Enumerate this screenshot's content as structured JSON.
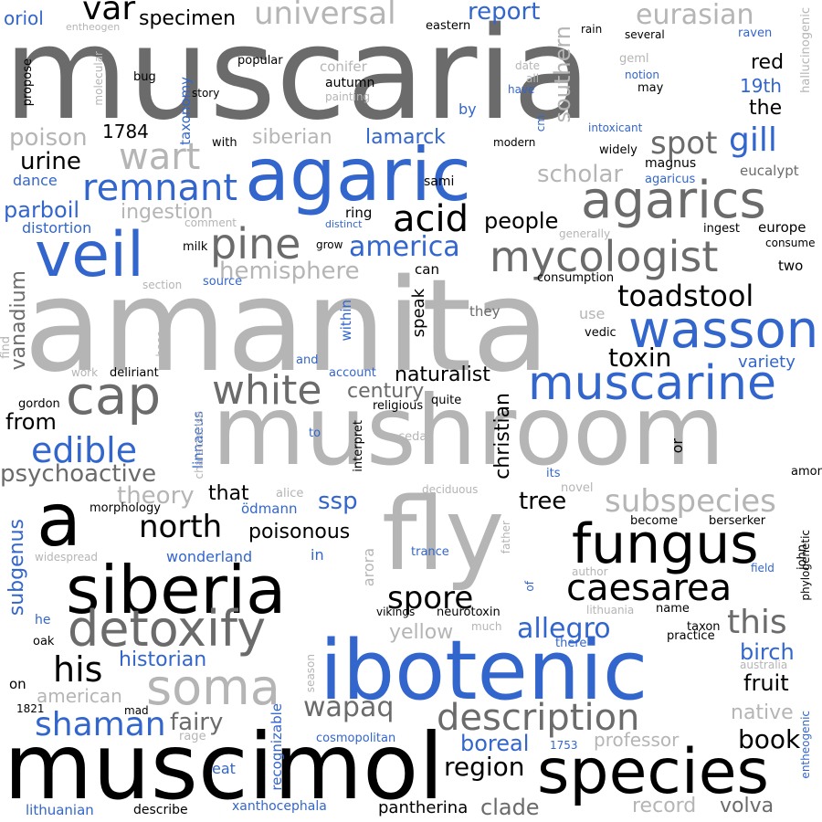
{
  "colors": {
    "black": "#000000",
    "dark_gray": "#6b6b6b",
    "light_gray": "#b5b5b5",
    "blue": "#3366cc",
    "background": "#ffffff"
  },
  "words": [
    {
      "text": "muscaria",
      "color": "dark_gray",
      "orientation": "horizontal"
    },
    {
      "text": "amanita",
      "color": "light_gray",
      "orientation": "horizontal"
    },
    {
      "text": "mushroom",
      "color": "light_gray",
      "orientation": "horizontal"
    },
    {
      "text": "muscimol",
      "color": "black",
      "orientation": "horizontal"
    },
    {
      "text": "ibotenic",
      "color": "blue",
      "orientation": "horizontal"
    },
    {
      "text": "agaric",
      "color": "blue",
      "orientation": "horizontal"
    },
    {
      "text": "fly",
      "color": "light_gray",
      "orientation": "horizontal"
    },
    {
      "text": "siberia",
      "color": "black",
      "orientation": "horizontal"
    },
    {
      "text": "species",
      "color": "black",
      "orientation": "horizontal"
    },
    {
      "text": "a",
      "color": "black",
      "orientation": "horizontal"
    },
    {
      "text": "veil",
      "color": "blue",
      "orientation": "horizontal"
    },
    {
      "text": "fungus",
      "color": "black",
      "orientation": "horizontal"
    },
    {
      "text": "detoxify",
      "color": "dark_gray",
      "orientation": "horizontal"
    },
    {
      "text": "agarics",
      "color": "dark_gray",
      "orientation": "horizontal"
    },
    {
      "text": "cap",
      "color": "dark_gray",
      "orientation": "horizontal"
    },
    {
      "text": "wasson",
      "color": "blue",
      "orientation": "horizontal"
    },
    {
      "text": "muscarine",
      "color": "blue",
      "orientation": "horizontal"
    },
    {
      "text": "mycologist",
      "color": "dark_gray",
      "orientation": "horizontal"
    },
    {
      "text": "description",
      "color": "dark_gray",
      "orientation": "horizontal"
    },
    {
      "text": "soma",
      "color": "light_gray",
      "orientation": "horizontal"
    },
    {
      "text": "white",
      "color": "dark_gray",
      "orientation": "horizontal"
    },
    {
      "text": "caesarea",
      "color": "black",
      "orientation": "horizontal"
    },
    {
      "text": "subspecies",
      "color": "light_gray",
      "orientation": "horizontal"
    },
    {
      "text": "pine",
      "color": "dark_gray",
      "orientation": "horizontal"
    },
    {
      "text": "remnant",
      "color": "blue",
      "orientation": "horizontal"
    },
    {
      "text": "universal",
      "color": "light_gray",
      "orientation": "horizontal"
    },
    {
      "text": "eurasian",
      "color": "light_gray",
      "orientation": "horizontal"
    },
    {
      "text": "toadstool",
      "color": "black",
      "orientation": "horizontal"
    },
    {
      "text": "edible",
      "color": "blue",
      "orientation": "horizontal"
    },
    {
      "text": "wart",
      "color": "light_gray",
      "orientation": "horizontal"
    },
    {
      "text": "acid",
      "color": "black",
      "orientation": "horizontal"
    },
    {
      "text": "north",
      "color": "black",
      "orientation": "horizontal"
    },
    {
      "text": "spore",
      "color": "black",
      "orientation": "horizontal"
    },
    {
      "text": "allegro",
      "color": "blue",
      "orientation": "horizontal"
    },
    {
      "text": "this",
      "color": "dark_gray",
      "orientation": "horizontal"
    },
    {
      "text": "his",
      "color": "black",
      "orientation": "horizontal"
    },
    {
      "text": "shaman",
      "color": "blue",
      "orientation": "horizontal"
    },
    {
      "text": "book",
      "color": "black",
      "orientation": "horizontal"
    },
    {
      "text": "region",
      "color": "black",
      "orientation": "horizontal"
    },
    {
      "text": "wapaq",
      "color": "dark_gray",
      "orientation": "horizontal"
    },
    {
      "text": "gill",
      "color": "blue",
      "orientation": "horizontal"
    },
    {
      "text": "spot",
      "color": "dark_gray",
      "orientation": "horizontal"
    },
    {
      "text": "var",
      "color": "black",
      "orientation": "horizontal"
    },
    {
      "text": "hemisphere",
      "color": "light_gray",
      "orientation": "horizontal"
    },
    {
      "text": "america",
      "color": "blue",
      "orientation": "horizontal"
    },
    {
      "text": "people",
      "color": "black",
      "orientation": "horizontal"
    },
    {
      "text": "toxin",
      "color": "black",
      "orientation": "horizontal"
    },
    {
      "text": "naturalist",
      "color": "black",
      "orientation": "horizontal"
    },
    {
      "text": "century",
      "color": "dark_gray",
      "orientation": "horizontal"
    },
    {
      "text": "psychoactive",
      "color": "dark_gray",
      "orientation": "horizontal"
    },
    {
      "text": "theory",
      "color": "light_gray",
      "orientation": "horizontal"
    },
    {
      "text": "poisonous",
      "color": "black",
      "orientation": "horizontal"
    },
    {
      "text": "tree",
      "color": "black",
      "orientation": "horizontal"
    },
    {
      "text": "ssp",
      "color": "blue",
      "orientation": "horizontal"
    },
    {
      "text": "that",
      "color": "black",
      "orientation": "horizontal"
    },
    {
      "text": "fairy",
      "color": "dark_gray",
      "orientation": "horizontal"
    },
    {
      "text": "fruit",
      "color": "black",
      "orientation": "horizontal"
    },
    {
      "text": "birch",
      "color": "blue",
      "orientation": "horizontal"
    },
    {
      "text": "boreal",
      "color": "blue",
      "orientation": "horizontal"
    },
    {
      "text": "clade",
      "color": "dark_gray",
      "orientation": "horizontal"
    },
    {
      "text": "volva",
      "color": "dark_gray",
      "orientation": "horizontal"
    },
    {
      "text": "record",
      "color": "light_gray",
      "orientation": "horizontal"
    },
    {
      "text": "pantherina",
      "color": "black",
      "orientation": "horizontal"
    },
    {
      "text": "yellow",
      "color": "light_gray",
      "orientation": "horizontal"
    },
    {
      "text": "historian",
      "color": "blue",
      "orientation": "horizontal"
    },
    {
      "text": "american",
      "color": "light_gray",
      "orientation": "horizontal"
    },
    {
      "text": "native",
      "color": "light_gray",
      "orientation": "horizontal"
    },
    {
      "text": "professor",
      "color": "light_gray",
      "orientation": "horizontal"
    },
    {
      "text": "variety",
      "color": "blue",
      "orientation": "horizontal"
    },
    {
      "text": "from",
      "color": "black",
      "orientation": "horizontal"
    },
    {
      "text": "report",
      "color": "blue",
      "orientation": "horizontal"
    },
    {
      "text": "poison",
      "color": "light_gray",
      "orientation": "horizontal"
    },
    {
      "text": "urine",
      "color": "black",
      "orientation": "horizontal"
    },
    {
      "text": "scholar",
      "color": "light_gray",
      "orientation": "horizontal"
    },
    {
      "text": "parboil",
      "color": "blue",
      "orientation": "horizontal"
    },
    {
      "text": "ingestion",
      "color": "light_gray",
      "orientation": "horizontal"
    },
    {
      "text": "siberian",
      "color": "light_gray",
      "orientation": "horizontal"
    },
    {
      "text": "lamarck",
      "color": "blue",
      "orientation": "horizontal"
    },
    {
      "text": "specimen",
      "color": "black",
      "orientation": "horizontal"
    },
    {
      "text": "red",
      "color": "black",
      "orientation": "horizontal"
    },
    {
      "text": "19th",
      "color": "blue",
      "orientation": "horizontal"
    },
    {
      "text": "the",
      "color": "black",
      "orientation": "horizontal"
    },
    {
      "text": "1784",
      "color": "black",
      "orientation": "horizontal"
    },
    {
      "text": "oriol",
      "color": "blue",
      "orientation": "horizontal"
    },
    {
      "text": "dance",
      "color": "blue",
      "orientation": "horizontal"
    },
    {
      "text": "distortion",
      "color": "blue",
      "orientation": "horizontal"
    },
    {
      "text": "wonderland",
      "color": "blue",
      "orientation": "horizontal"
    },
    {
      "text": "xanthocephala",
      "color": "blue",
      "orientation": "horizontal"
    },
    {
      "text": "lithuanian",
      "color": "blue",
      "orientation": "horizontal"
    },
    {
      "text": "describe",
      "color": "black",
      "orientation": "horizontal"
    },
    {
      "text": "eat",
      "color": "blue",
      "orientation": "horizontal"
    },
    {
      "text": "rage",
      "color": "light_gray",
      "orientation": "horizontal"
    },
    {
      "text": "cosmopolitan",
      "color": "blue",
      "orientation": "horizontal"
    },
    {
      "text": "1753",
      "color": "blue",
      "orientation": "horizontal"
    },
    {
      "text": "mad",
      "color": "black",
      "orientation": "horizontal"
    },
    {
      "text": "1821",
      "color": "black",
      "orientation": "horizontal"
    },
    {
      "text": "on",
      "color": "black",
      "orientation": "horizontal"
    },
    {
      "text": "oak",
      "color": "black",
      "orientation": "horizontal"
    },
    {
      "text": "he",
      "color": "blue",
      "orientation": "horizontal"
    },
    {
      "text": "gordon",
      "color": "black",
      "orientation": "horizontal"
    },
    {
      "text": "work",
      "color": "light_gray",
      "orientation": "horizontal"
    },
    {
      "text": "deliriant",
      "color": "black",
      "orientation": "horizontal"
    },
    {
      "text": "account",
      "color": "blue",
      "orientation": "horizontal"
    },
    {
      "text": "religious",
      "color": "black",
      "orientation": "horizontal"
    },
    {
      "text": "quite",
      "color": "black",
      "orientation": "horizontal"
    },
    {
      "text": "cedar",
      "color": "light_gray",
      "orientation": "horizontal"
    },
    {
      "text": "to",
      "color": "blue",
      "orientation": "horizontal"
    },
    {
      "text": "and",
      "color": "blue",
      "orientation": "horizontal"
    },
    {
      "text": "alice",
      "color": "light_gray",
      "orientation": "horizontal"
    },
    {
      "text": "ödmann",
      "color": "blue",
      "orientation": "horizontal"
    },
    {
      "text": "morphology",
      "color": "black",
      "orientation": "horizontal"
    },
    {
      "text": "widespread",
      "color": "light_gray",
      "orientation": "horizontal"
    },
    {
      "text": "in",
      "color": "blue",
      "orientation": "horizontal"
    },
    {
      "text": "trance",
      "color": "blue",
      "orientation": "horizontal"
    },
    {
      "text": "deciduous",
      "color": "light_gray",
      "orientation": "horizontal"
    },
    {
      "text": "novel",
      "color": "light_gray",
      "orientation": "horizontal"
    },
    {
      "text": "its",
      "color": "blue",
      "orientation": "horizontal"
    },
    {
      "text": "become",
      "color": "black",
      "orientation": "horizontal"
    },
    {
      "text": "berserker",
      "color": "black",
      "orientation": "horizontal"
    },
    {
      "text": "among",
      "color": "black",
      "orientation": "horizontal"
    },
    {
      "text": "author",
      "color": "light_gray",
      "orientation": "horizontal"
    },
    {
      "text": "field",
      "color": "blue",
      "orientation": "horizontal"
    },
    {
      "text": "lithuania",
      "color": "light_gray",
      "orientation": "horizontal"
    },
    {
      "text": "name",
      "color": "black",
      "orientation": "horizontal"
    },
    {
      "text": "taxon",
      "color": "black",
      "orientation": "horizontal"
    },
    {
      "text": "practice",
      "color": "black",
      "orientation": "horizontal"
    },
    {
      "text": "australia",
      "color": "light_gray",
      "orientation": "horizontal"
    },
    {
      "text": "vikings",
      "color": "black",
      "orientation": "horizontal"
    },
    {
      "text": "neurotoxin",
      "color": "black",
      "orientation": "horizontal"
    },
    {
      "text": "there",
      "color": "blue",
      "orientation": "horizontal"
    },
    {
      "text": "much",
      "color": "light_gray",
      "orientation": "horizontal"
    },
    {
      "text": "they",
      "color": "dark_gray",
      "orientation": "horizontal"
    },
    {
      "text": "use",
      "color": "light_gray",
      "orientation": "horizontal"
    },
    {
      "text": "vedic",
      "color": "black",
      "orientation": "horizontal"
    },
    {
      "text": "can",
      "color": "black",
      "orientation": "horizontal"
    },
    {
      "text": "two",
      "color": "black",
      "orientation": "horizontal"
    },
    {
      "text": "consumption",
      "color": "black",
      "orientation": "horizontal"
    },
    {
      "text": "source",
      "color": "blue",
      "orientation": "horizontal"
    },
    {
      "text": "section",
      "color": "light_gray",
      "orientation": "horizontal"
    },
    {
      "text": "milk",
      "color": "black",
      "orientation": "horizontal"
    },
    {
      "text": "grow",
      "color": "black",
      "orientation": "horizontal"
    },
    {
      "text": "ring",
      "color": "black",
      "orientation": "horizontal"
    },
    {
      "text": "distinct",
      "color": "blue",
      "orientation": "horizontal"
    },
    {
      "text": "generally",
      "color": "light_gray",
      "orientation": "horizontal"
    },
    {
      "text": "ingest",
      "color": "black",
      "orientation": "horizontal"
    },
    {
      "text": "europe",
      "color": "black",
      "orientation": "horizontal"
    },
    {
      "text": "consume",
      "color": "black",
      "orientation": "horizontal"
    },
    {
      "text": "comment",
      "color": "light_gray",
      "orientation": "horizontal"
    },
    {
      "text": "sami",
      "color": "black",
      "orientation": "horizontal"
    },
    {
      "text": "magnus",
      "color": "black",
      "orientation": "horizontal"
    },
    {
      "text": "agaricus",
      "color": "blue",
      "orientation": "horizontal"
    },
    {
      "text": "eucalypt",
      "color": "dark_gray",
      "orientation": "horizontal"
    },
    {
      "text": "widely",
      "color": "black",
      "orientation": "horizontal"
    },
    {
      "text": "modern",
      "color": "black",
      "orientation": "horizontal"
    },
    {
      "text": "intoxicant",
      "color": "blue",
      "orientation": "horizontal"
    },
    {
      "text": "with",
      "color": "black",
      "orientation": "horizontal"
    },
    {
      "text": "story",
      "color": "black",
      "orientation": "horizontal"
    },
    {
      "text": "bug",
      "color": "black",
      "orientation": "horizontal"
    },
    {
      "text": "popular",
      "color": "black",
      "orientation": "horizontal"
    },
    {
      "text": "conifer",
      "color": "light_gray",
      "orientation": "horizontal"
    },
    {
      "text": "autumn",
      "color": "black",
      "orientation": "horizontal"
    },
    {
      "text": "painting",
      "color": "light_gray",
      "orientation": "horizontal"
    },
    {
      "text": "by",
      "color": "blue",
      "orientation": "horizontal"
    },
    {
      "text": "have",
      "color": "blue",
      "orientation": "horizontal"
    },
    {
      "text": "all",
      "color": "light_gray",
      "orientation": "horizontal"
    },
    {
      "text": "date",
      "color": "light_gray",
      "orientation": "horizontal"
    },
    {
      "text": "geml",
      "color": "light_gray",
      "orientation": "horizontal"
    },
    {
      "text": "notion",
      "color": "blue",
      "orientation": "horizontal"
    },
    {
      "text": "may",
      "color": "black",
      "orientation": "horizontal"
    },
    {
      "text": "rain",
      "color": "black",
      "orientation": "horizontal"
    },
    {
      "text": "several",
      "color": "black",
      "orientation": "horizontal"
    },
    {
      "text": "raven",
      "color": "blue",
      "orientation": "horizontal"
    },
    {
      "text": "eastern",
      "color": "black",
      "orientation": "horizontal"
    },
    {
      "text": "entheogen",
      "color": "light_gray",
      "orientation": "horizontal"
    },
    {
      "text": "southern",
      "color": "light_gray",
      "orientation": "vertical"
    },
    {
      "text": "taxonomy",
      "color": "blue",
      "orientation": "vertical"
    },
    {
      "text": "molecular",
      "color": "light_gray",
      "orientation": "vertical"
    },
    {
      "text": "propose",
      "color": "black",
      "orientation": "vertical"
    },
    {
      "text": "hallucinogenic",
      "color": "light_gray",
      "orientation": "vertical"
    },
    {
      "text": "cm",
      "color": "blue",
      "orientation": "vertical"
    },
    {
      "text": "vanadium",
      "color": "dark_gray",
      "orientation": "vertical"
    },
    {
      "text": "speak",
      "color": "black",
      "orientation": "vertical"
    },
    {
      "text": "within",
      "color": "blue",
      "orientation": "vertical"
    },
    {
      "text": "find",
      "color": "light_gray",
      "orientation": "vertical"
    },
    {
      "text": "base",
      "color": "light_gray",
      "orientation": "vertical"
    },
    {
      "text": "subgenus",
      "color": "blue",
      "orientation": "vertical"
    },
    {
      "text": "linnaeus",
      "color": "blue",
      "orientation": "vertical"
    },
    {
      "text": "characterise",
      "color": "light_gray",
      "orientation": "vertical"
    },
    {
      "text": "interpret",
      "color": "black",
      "orientation": "vertical"
    },
    {
      "text": "christian",
      "color": "black",
      "orientation": "vertical"
    },
    {
      "text": "or",
      "color": "black",
      "orientation": "vertical"
    },
    {
      "text": "arora",
      "color": "light_gray",
      "orientation": "vertical"
    },
    {
      "text": "of",
      "color": "blue",
      "orientation": "vertical"
    },
    {
      "text": "father",
      "color": "light_gray",
      "orientation": "vertical"
    },
    {
      "text": "john",
      "color": "black",
      "orientation": "vertical"
    },
    {
      "text": "phylogenetic",
      "color": "black",
      "orientation": "vertical"
    },
    {
      "text": "recognizable",
      "color": "blue",
      "orientation": "vertical"
    },
    {
      "text": "season",
      "color": "light_gray",
      "orientation": "vertical"
    },
    {
      "text": "entheogenic",
      "color": "blue",
      "orientation": "vertical"
    }
  ]
}
